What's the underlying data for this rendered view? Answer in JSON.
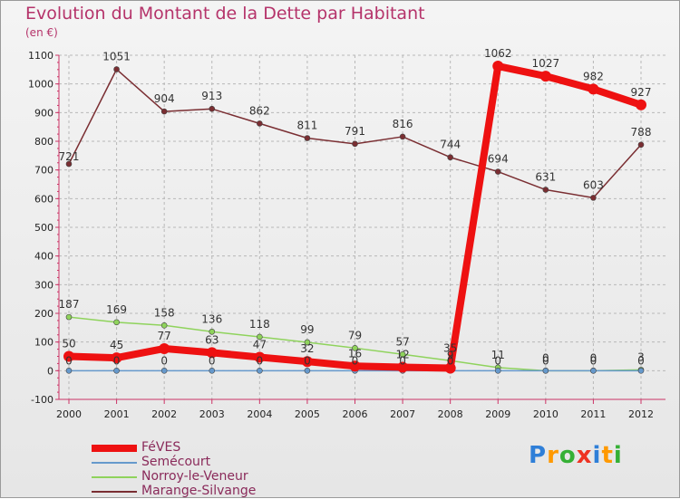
{
  "title": "Evolution du Montant de la Dette par Habitant",
  "unit": "(en €)",
  "chart_data": {
    "type": "line",
    "title": "Evolution du Montant de la Dette par Habitant",
    "ylabel": "(en €)",
    "xlabel": "",
    "ylim": [
      -100,
      1100
    ],
    "yticks": [
      -100,
      0,
      100,
      200,
      300,
      400,
      500,
      600,
      700,
      800,
      900,
      1000,
      1100
    ],
    "grid": true,
    "legend_position": "bottom-left",
    "categories": [
      "2000",
      "2001",
      "2002",
      "2003",
      "2004",
      "2005",
      "2006",
      "2007",
      "2008",
      "2009",
      "2010",
      "2011",
      "2012"
    ],
    "series": [
      {
        "name": "FéVES",
        "color": "#ee1111",
        "values": [
          50,
          45,
          77,
          63,
          47,
          32,
          16,
          12,
          9,
          1062,
          1027,
          982,
          927
        ]
      },
      {
        "name": "Semécourt",
        "color": "#6699cc",
        "values": [
          0,
          0,
          0,
          0,
          0,
          0,
          0,
          0,
          0,
          0,
          0,
          0,
          0
        ]
      },
      {
        "name": "Norroy-le-Veneur",
        "color": "#8fd35c",
        "values": [
          187,
          169,
          158,
          136,
          118,
          99,
          79,
          57,
          35,
          11,
          0,
          0,
          3
        ]
      },
      {
        "name": "Marange-Silvange",
        "color": "#7a2e32",
        "values": [
          721,
          1051,
          904,
          913,
          862,
          811,
          791,
          816,
          744,
          694,
          631,
          603,
          788
        ]
      }
    ]
  },
  "brand": {
    "letters": [
      "P",
      "r",
      "o",
      "x",
      "i",
      "t",
      "i"
    ],
    "colors": [
      "#2f7fd8",
      "#ff9900",
      "#35b035",
      "#ee3322",
      "#2f7fd8",
      "#ff9900",
      "#35b035"
    ]
  }
}
